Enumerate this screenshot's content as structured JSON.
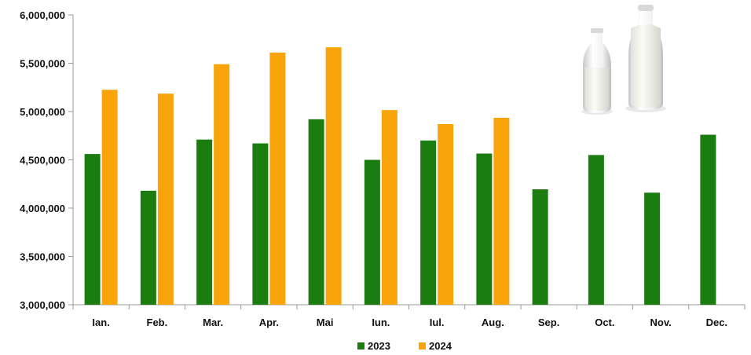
{
  "colors": {
    "s2023": "#1b7d10",
    "s2024": "#f9a40b",
    "axis": "#9a9a9a"
  },
  "image_icon": "milk-bottles-icon",
  "chart_data": {
    "type": "bar",
    "categories": [
      "Ian.",
      "Feb.",
      "Mar.",
      "Apr.",
      "Mai",
      "Iun.",
      "Iul.",
      "Aug.",
      "Sep.",
      "Oct.",
      "Nov.",
      "Dec."
    ],
    "series": [
      {
        "name": "2023",
        "values": [
          4560000,
          4180000,
          4710000,
          4670000,
          4920000,
          4500000,
          4700000,
          4565000,
          4195000,
          4550000,
          4160000,
          4760000
        ]
      },
      {
        "name": "2024",
        "values": [
          5225000,
          5185000,
          5490000,
          5610000,
          5665000,
          5015000,
          4870000,
          4935000,
          null,
          null,
          null,
          null
        ]
      }
    ],
    "ylim": [
      3000000,
      6000000
    ],
    "yticks": [
      3000000,
      3500000,
      4000000,
      4500000,
      5000000,
      5500000,
      6000000
    ],
    "ytick_labels": [
      "3,000,000",
      "3,500,000",
      "4,000,000",
      "4,500,000",
      "5,000,000",
      "5,500,000",
      "6,000,000"
    ],
    "title": "",
    "xlabel": "",
    "ylabel": "",
    "legend": "bottom-center",
    "grid": false
  }
}
